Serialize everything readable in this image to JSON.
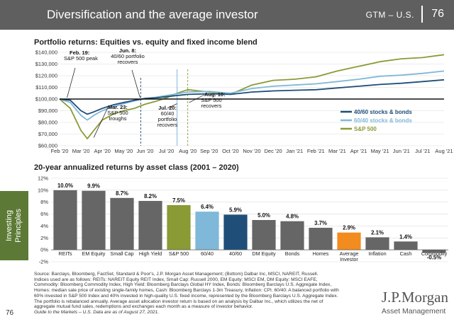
{
  "header": {
    "title": "Diversification and the average investor",
    "gtm": "GTM – U.S.",
    "page": "76"
  },
  "sidebar": {
    "line1": "Investing",
    "line2": "Principles"
  },
  "page_number": "76",
  "brand": {
    "name": "J.P.Morgan",
    "sub": "Asset Management"
  },
  "colors": {
    "blend_40_60": "#1f4e79",
    "avg_60_40": "#7fb8d8",
    "sp500": "#8a9a35",
    "avg_investor_bar": "#f28c1e",
    "gray_bar": "#666666"
  },
  "footnote": [
    "Source: Barclays, Bloomberg, FactSet, Standard & Poor's, J.P. Morgan Asset Management; (Bottom) Dalbar Inc, MSCI, NAREIT, Russell.",
    "Indices used are as follows: REITs: NAREIT Equity REIT Index, Small Cap: Russell 2000, EM Equity: MSCI EM, DM Equity: MSCI EAFE,",
    "Commodity: Bloomberg Commodity Index, High Yield: Bloomberg Barclays Global HY Index, Bonds: Bloomberg Barclays U.S. Aggregate Index,",
    "Homes: median sale price of existing single-family homes, Cash: Bloomberg Barclays 1-3m Treasury, Inflation: CPI. 60/40: A balanced portfolio with",
    "60% invested in S&P 500 Index and 40% invested in high-quality U.S. fixed income, represented by the Bloomberg Barclays U.S. Aggregate Index.",
    "The portfolio is rebalanced annually. Average asset allocation investor return is based on an analysis by Dalbar Inc., which utilizes the net of",
    "aggregate mutual fund sales, redemptions and exchanges each month as a measure of investor behavior.",
    "Guide to the Markets – U.S. Data are as of August 27, 2021."
  ],
  "chart_data": [
    {
      "type": "line",
      "title": "Portfolio returns: Equities vs. equity and fixed income blend",
      "x_ticks": [
        "Feb '20",
        "Mar '20",
        "Apr '20",
        "May '20",
        "Jun '20",
        "Jul '20",
        "Aug '20",
        "Sep '20",
        "Oct '20",
        "Nov '20",
        "Dec '20",
        "Jan '21",
        "Feb '21",
        "Mar '21",
        "Apr '21",
        "May '21",
        "Jun '21",
        "Jul '21",
        "Aug '21"
      ],
      "y_ticks": [
        "$60,000",
        "$70,000",
        "$80,000",
        "$90,000",
        "$100,000",
        "$110,000",
        "$120,000",
        "$130,000",
        "$140,000"
      ],
      "ylim": [
        60000,
        140000
      ],
      "grid": true,
      "legend_position": "right",
      "baseline": 100000,
      "series": [
        {
          "name": "40/60 stocks & bonds",
          "color": "#1f4e79",
          "x": [
            0,
            0.5,
            1,
            1.3,
            1.6,
            2,
            2.5,
            3,
            3.5,
            4,
            4.5,
            5,
            5.5,
            6,
            7,
            8,
            9,
            10,
            11,
            12,
            13,
            14,
            15,
            16,
            17,
            18
          ],
          "y": [
            100000,
            99000,
            90000,
            87000,
            89000,
            92000,
            95000,
            97000,
            99000,
            100500,
            101000,
            102000,
            103000,
            104000,
            104500,
            104000,
            106000,
            107000,
            107500,
            108000,
            109500,
            111000,
            112500,
            113500,
            115000,
            116500
          ]
        },
        {
          "name": "60/40 stocks & bonds",
          "color": "#7fb8d8",
          "x": [
            0,
            0.5,
            1,
            1.3,
            1.6,
            2,
            2.5,
            3,
            3.5,
            4,
            4.5,
            5,
            5.5,
            6,
            7,
            8,
            9,
            10,
            11,
            12,
            13,
            14,
            15,
            16,
            17,
            18
          ],
          "y": [
            100000,
            97000,
            86000,
            82000,
            86000,
            90000,
            93500,
            96000,
            98500,
            100500,
            101500,
            103000,
            104500,
            106000,
            106500,
            105000,
            109000,
            111000,
            112000,
            113000,
            115000,
            117000,
            119500,
            120500,
            122000,
            124000
          ]
        },
        {
          "name": "S&P 500",
          "color": "#8a9a35",
          "x": [
            0,
            0.5,
            1,
            1.3,
            1.6,
            2,
            2.5,
            3,
            3.5,
            4,
            4.5,
            5,
            5.5,
            6,
            7,
            8,
            9,
            10,
            11,
            12,
            13,
            14,
            15,
            16,
            17,
            18
          ],
          "y": [
            100000,
            92000,
            73000,
            66000,
            73000,
            82000,
            87000,
            90000,
            92000,
            95500,
            98000,
            101000,
            105000,
            108000,
            106000,
            104000,
            112000,
            116000,
            117000,
            119000,
            124000,
            128000,
            132000,
            134500,
            135500,
            138000
          ]
        }
      ],
      "annotations": [
        {
          "label": "Feb. 19:",
          "text": "S&P 500 peak",
          "x": 0.35
        },
        {
          "label": "Jun. 8:",
          "text": "40/60 portfolio recovers",
          "x": 3.8
        },
        {
          "label": "Mar. 23:",
          "text": "S&P 500 troughs",
          "x": 1.4
        },
        {
          "label": "Jul. 20:",
          "text": "60/40 portfolio recovers",
          "x": 5.5
        },
        {
          "label": "Aug. 10:",
          "text": "S&P 500 recovers",
          "x": 6.0
        }
      ]
    },
    {
      "type": "bar",
      "title": "20-year annualized returns by asset class (2001 – 2020)",
      "categories": [
        "REITs",
        "EM Equity",
        "Small Cap",
        "High Yield",
        "S&P 500",
        "60/40",
        "40/60",
        "DM Equity",
        "Bonds",
        "Homes",
        "Average Investor",
        "Inflation",
        "Cash",
        "Commodity"
      ],
      "values": [
        10.0,
        9.9,
        8.7,
        8.2,
        7.5,
        6.4,
        5.9,
        5.0,
        4.8,
        3.7,
        2.9,
        2.1,
        1.4,
        -0.5
      ],
      "value_labels": [
        "10.0%",
        "9.9%",
        "8.7%",
        "8.2%",
        "7.5%",
        "6.4%",
        "5.9%",
        "5.0%",
        "4.8%",
        "3.7%",
        "2.9%",
        "2.1%",
        "1.4%",
        "-0.5%"
      ],
      "colors": [
        "#666666",
        "#666666",
        "#666666",
        "#666666",
        "#8a9a35",
        "#7fb8d8",
        "#1f4e79",
        "#666666",
        "#666666",
        "#666666",
        "#f28c1e",
        "#666666",
        "#666666",
        "#666666"
      ],
      "y_ticks": [
        "-2%",
        "0%",
        "2%",
        "4%",
        "6%",
        "8%",
        "10%",
        "12%"
      ],
      "ylim": [
        -2,
        12
      ],
      "grid": true
    }
  ]
}
